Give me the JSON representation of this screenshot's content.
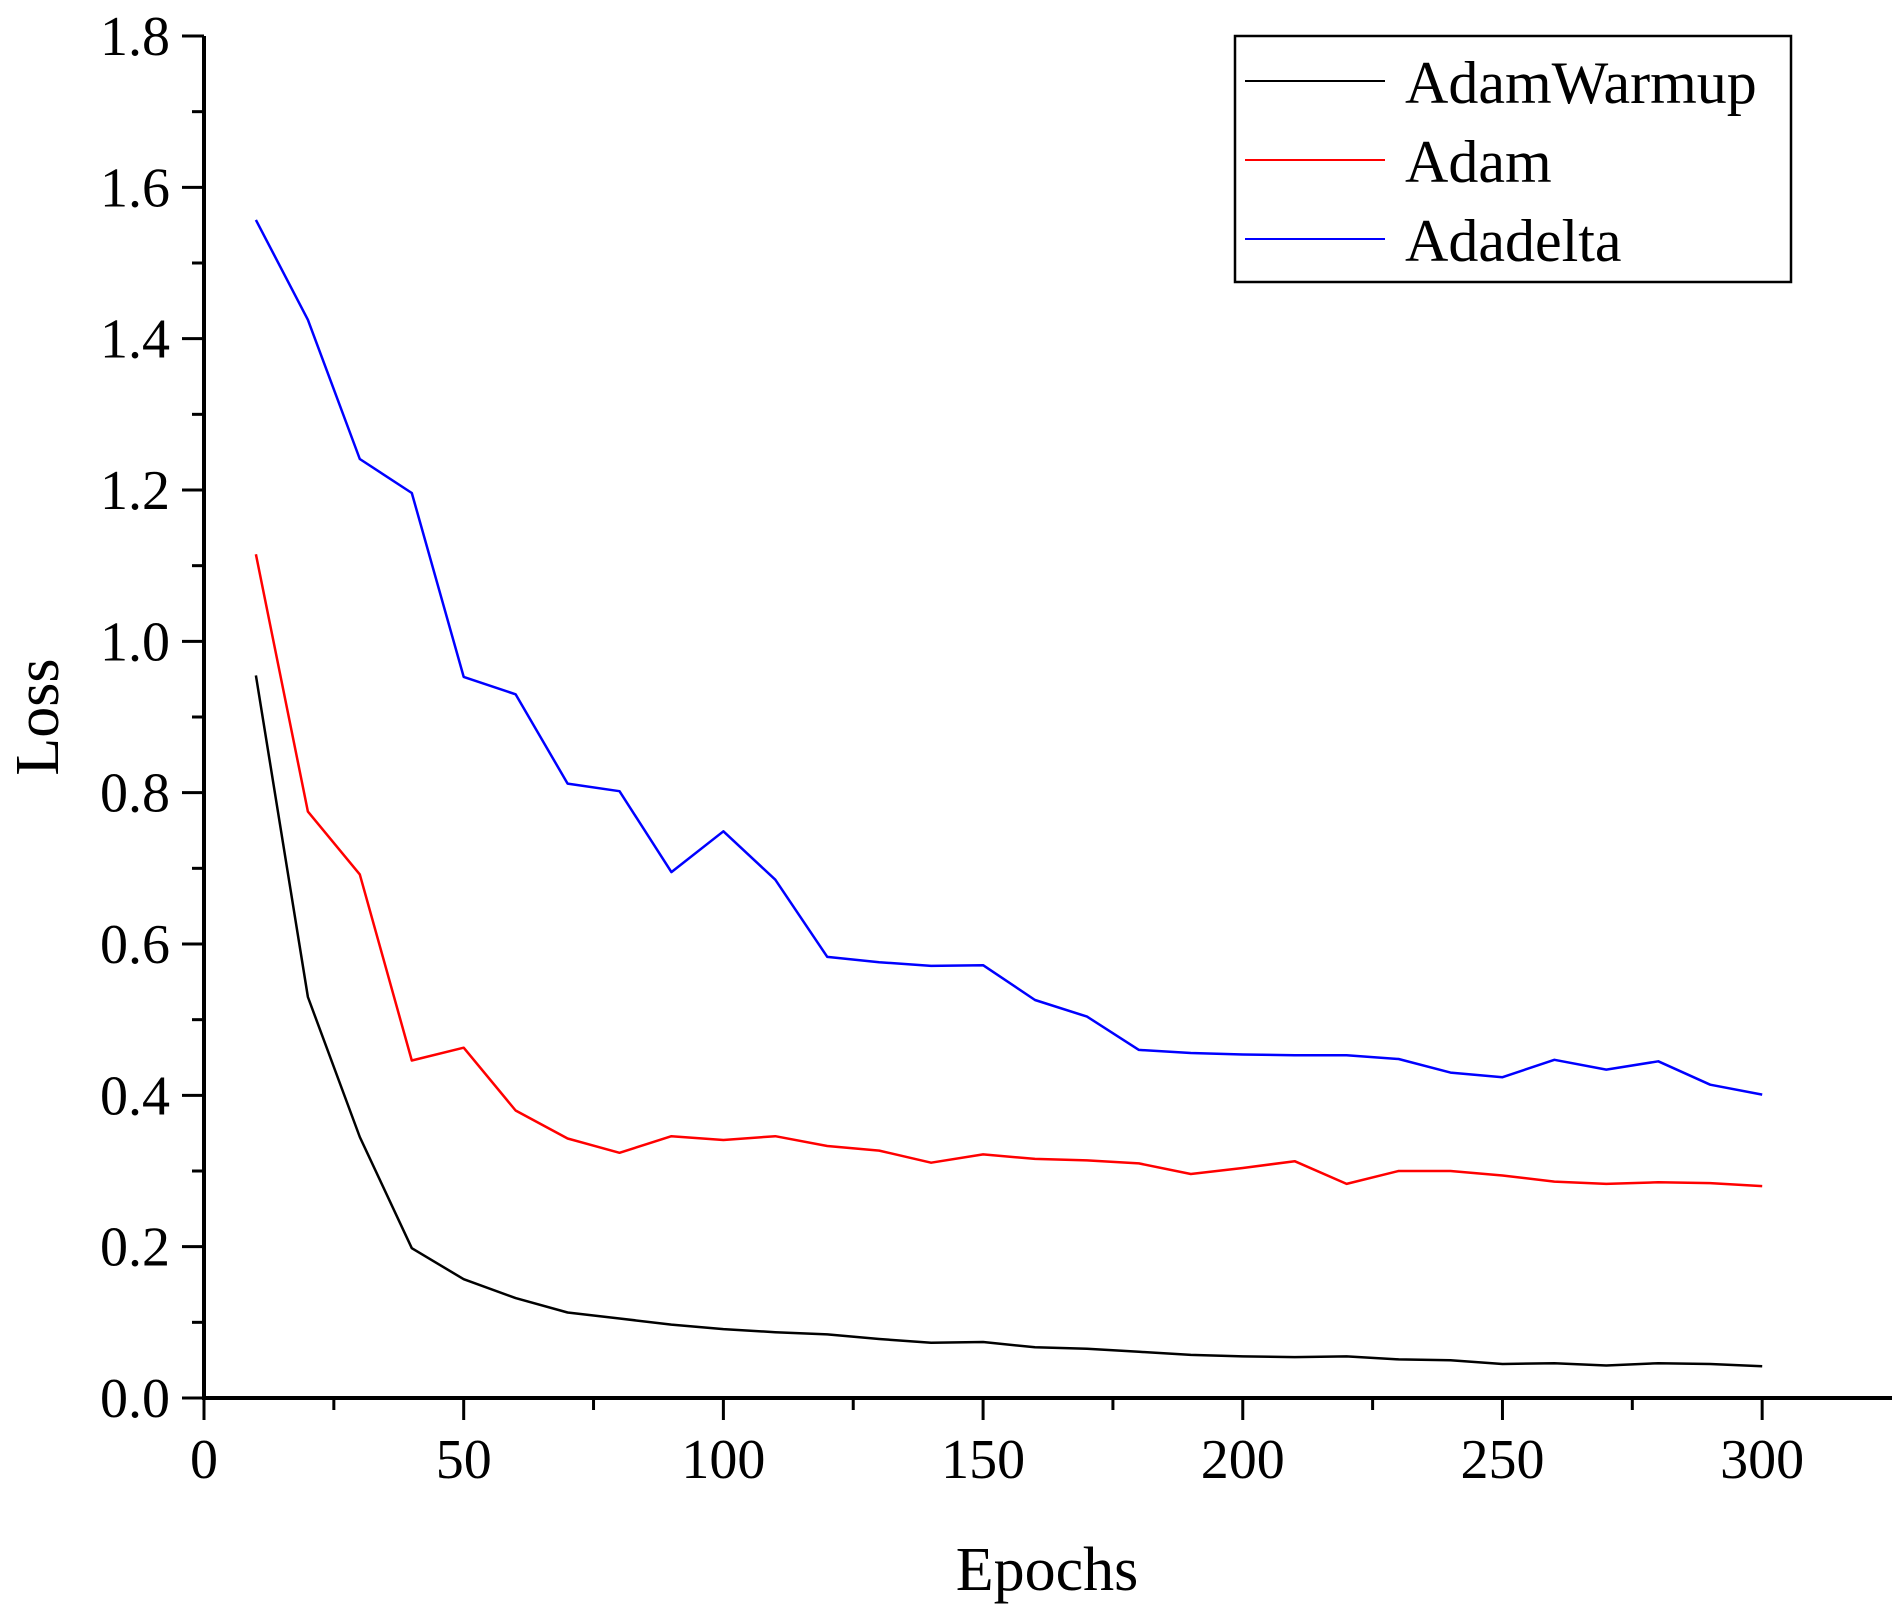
{
  "chart_data": {
    "type": "line",
    "title": "",
    "xlabel": "Epochs",
    "ylabel": "Loss",
    "xlim": [
      0,
      325
    ],
    "ylim": [
      0,
      1.8
    ],
    "xticks": [
      0,
      50,
      100,
      150,
      200,
      250,
      300
    ],
    "xtick_labels": [
      "0",
      "50",
      "100",
      "150",
      "200",
      "250",
      "300"
    ],
    "yticks": [
      0,
      0.2,
      0.4,
      0.6,
      0.8,
      1.0,
      1.2,
      1.4,
      1.6,
      1.8
    ],
    "ytick_labels": [
      "0.0",
      "0.2",
      "0.4",
      "0.6",
      "0.8",
      "1.0",
      "1.2",
      "1.4",
      "1.6",
      "1.8"
    ],
    "grid": false,
    "legend_position": "top-right",
    "x": [
      10,
      20,
      30,
      40,
      50,
      60,
      70,
      80,
      90,
      100,
      110,
      120,
      130,
      140,
      150,
      160,
      170,
      180,
      190,
      200,
      210,
      220,
      230,
      240,
      250,
      260,
      270,
      280,
      290,
      300
    ],
    "series": [
      {
        "name": "AdamWarmup",
        "color": "#000000",
        "values": [
          0.955,
          0.53,
          0.345,
          0.198,
          0.157,
          0.132,
          0.113,
          0.105,
          0.097,
          0.091,
          0.087,
          0.084,
          0.078,
          0.073,
          0.074,
          0.067,
          0.065,
          0.061,
          0.057,
          0.055,
          0.054,
          0.055,
          0.051,
          0.05,
          0.045,
          0.046,
          0.043,
          0.046,
          0.045,
          0.042
        ]
      },
      {
        "name": "Adam",
        "color": "#ff0000",
        "values": [
          1.115,
          0.775,
          0.692,
          0.446,
          0.463,
          0.38,
          0.343,
          0.324,
          0.346,
          0.341,
          0.346,
          0.333,
          0.327,
          0.311,
          0.322,
          0.316,
          0.314,
          0.31,
          0.296,
          0.304,
          0.313,
          0.283,
          0.3,
          0.3,
          0.294,
          0.286,
          0.283,
          0.285,
          0.284,
          0.28
        ]
      },
      {
        "name": "Adadelta",
        "color": "#0000ff",
        "values": [
          1.557,
          1.425,
          1.241,
          1.196,
          0.953,
          0.93,
          0.812,
          0.802,
          0.695,
          0.749,
          0.685,
          0.583,
          0.576,
          0.571,
          0.572,
          0.526,
          0.504,
          0.46,
          0.456,
          0.454,
          0.453,
          0.453,
          0.448,
          0.43,
          0.424,
          0.447,
          0.434,
          0.445,
          0.414,
          0.401
        ]
      }
    ]
  }
}
